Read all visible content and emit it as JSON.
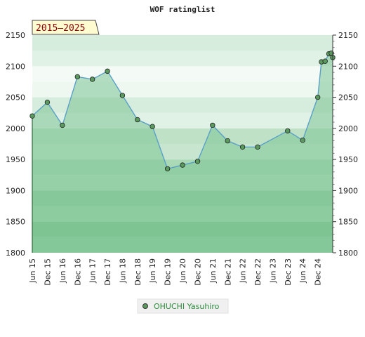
{
  "chart_data": {
    "type": "line",
    "title": "WOF ratinglist",
    "period_badge": "2015–2025",
    "ylim": [
      1800,
      2150
    ],
    "y_ticks": [
      1800,
      1850,
      1900,
      1950,
      2000,
      2050,
      2100,
      2150
    ],
    "y_tick_labels": [
      "1800",
      "1850",
      "1900",
      "1950",
      "2000",
      "2050",
      "2100",
      "2150"
    ],
    "x_range": [
      "2015-06-01",
      "2025-06-01"
    ],
    "x_ticks": [
      {
        "date": "2015-06-01",
        "label": "Jun 15"
      },
      {
        "date": "2015-12-01",
        "label": "Dec 15"
      },
      {
        "date": "2016-06-01",
        "label": "Jun 16"
      },
      {
        "date": "2016-12-01",
        "label": "Dec 16"
      },
      {
        "date": "2017-06-01",
        "label": "Jun 17"
      },
      {
        "date": "2017-12-01",
        "label": "Dec 17"
      },
      {
        "date": "2018-06-01",
        "label": "Jun 18"
      },
      {
        "date": "2018-12-01",
        "label": "Dec 18"
      },
      {
        "date": "2019-06-01",
        "label": "Jun 19"
      },
      {
        "date": "2019-12-01",
        "label": "Dec 19"
      },
      {
        "date": "2020-06-01",
        "label": "Jun 20"
      },
      {
        "date": "2020-12-01",
        "label": "Dec 20"
      },
      {
        "date": "2021-06-01",
        "label": "Jun 21"
      },
      {
        "date": "2021-12-01",
        "label": "Dec 21"
      },
      {
        "date": "2022-06-01",
        "label": "Jun 22"
      },
      {
        "date": "2022-12-01",
        "label": "Dec 22"
      },
      {
        "date": "2023-06-01",
        "label": "Jun 23"
      },
      {
        "date": "2023-12-01",
        "label": "Dec 23"
      },
      {
        "date": "2024-06-01",
        "label": "Jun 24"
      },
      {
        "date": "2024-12-01",
        "label": "Dec 24"
      }
    ],
    "series": [
      {
        "name": "OHUCHI Yasuhiro",
        "color": "#5aa0c8",
        "fill": "#7cc494",
        "marker_color": "#5a9a5e",
        "points": [
          {
            "x": "2015-06-01",
            "y": 2020
          },
          {
            "x": "2015-12-01",
            "y": 2042
          },
          {
            "x": "2016-06-01",
            "y": 2005
          },
          {
            "x": "2016-12-01",
            "y": 2083
          },
          {
            "x": "2017-06-01",
            "y": 2079
          },
          {
            "x": "2017-12-01",
            "y": 2092
          },
          {
            "x": "2018-06-01",
            "y": 2053
          },
          {
            "x": "2018-12-01",
            "y": 2014
          },
          {
            "x": "2019-06-01",
            "y": 2003
          },
          {
            "x": "2019-12-01",
            "y": 1935
          },
          {
            "x": "2020-06-01",
            "y": 1941
          },
          {
            "x": "2020-12-01",
            "y": 1947
          },
          {
            "x": "2021-06-01",
            "y": 2005
          },
          {
            "x": "2021-12-01",
            "y": 1980
          },
          {
            "x": "2022-06-01",
            "y": 1970
          },
          {
            "x": "2022-12-01",
            "y": 1970
          },
          {
            "x": "2023-12-01",
            "y": 1996
          },
          {
            "x": "2024-06-01",
            "y": 1981
          },
          {
            "x": "2024-12-01",
            "y": 2050
          },
          {
            "x": "2025-01-15",
            "y": 2107
          },
          {
            "x": "2025-03-01",
            "y": 2108
          },
          {
            "x": "2025-04-15",
            "y": 2120
          },
          {
            "x": "2025-05-15",
            "y": 2121
          },
          {
            "x": "2025-06-01",
            "y": 2114
          }
        ]
      }
    ],
    "legend_position": "bottom-center",
    "grid": false
  }
}
